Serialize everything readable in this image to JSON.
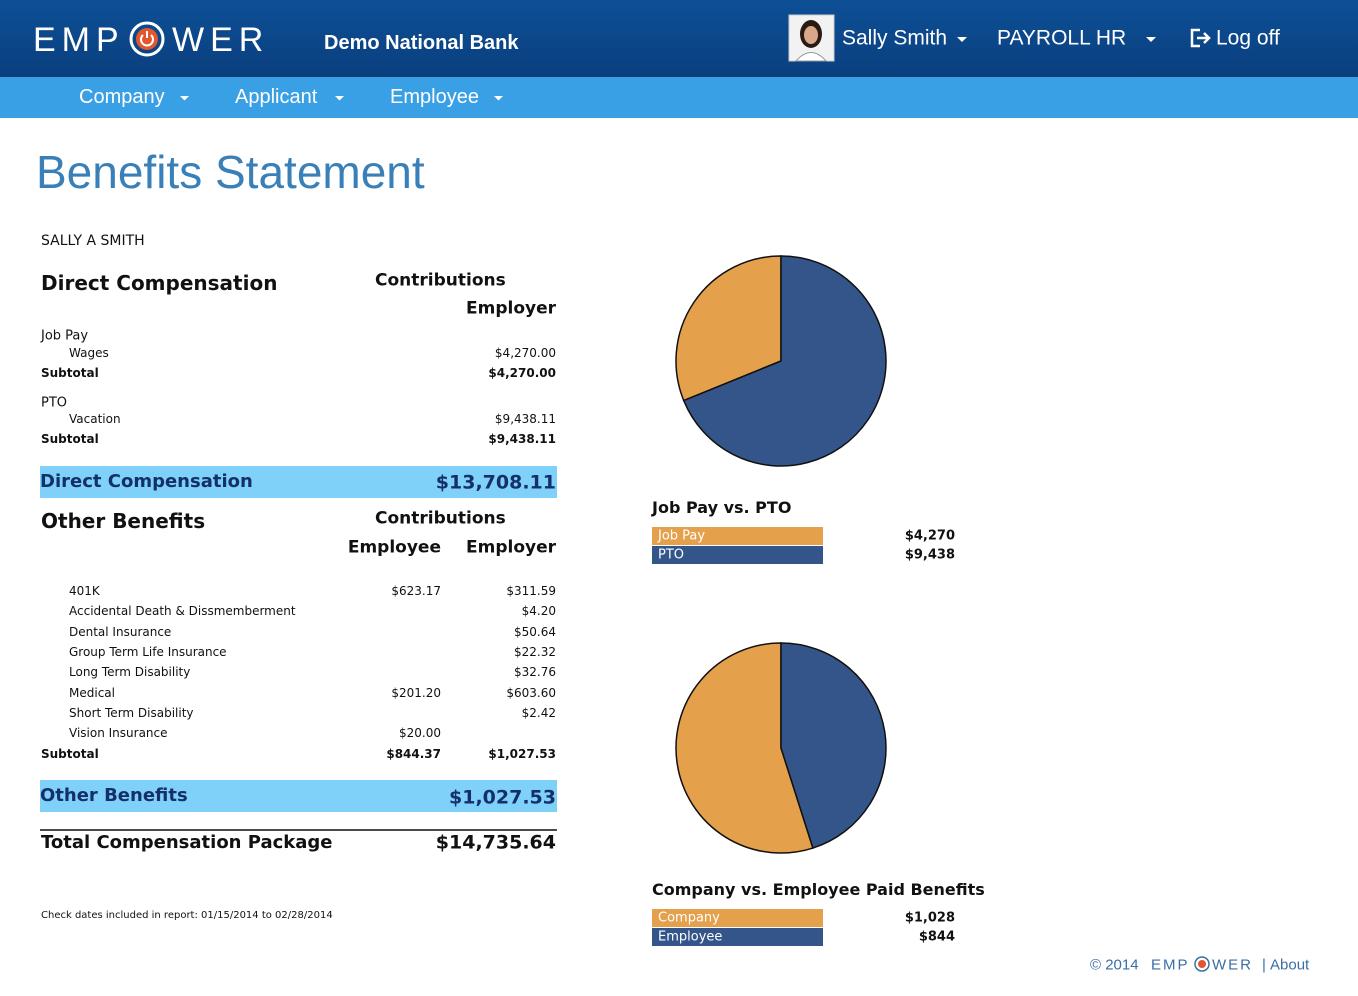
{
  "header": {
    "logo_left": "EMP",
    "logo_right": "WER",
    "bank": "Demo National Bank",
    "user": "Sally Smith",
    "role": "PAYROLL HR",
    "logoff": "Log off"
  },
  "nav": [
    "Company",
    "Applicant",
    "Employee"
  ],
  "page_title": "Benefits Statement",
  "statement": {
    "name": "SALLY A SMITH",
    "direct": {
      "heading": "Direct Compensation",
      "contributions": "Contributions",
      "employer": "Employer",
      "groups": [
        {
          "label": "Job Pay",
          "items": [
            {
              "label": "Wages",
              "employer": "$4,270.00"
            }
          ],
          "subtotal_label": "Subtotal",
          "subtotal": "$4,270.00"
        },
        {
          "label": "PTO",
          "items": [
            {
              "label": "Vacation",
              "employer": "$9,438.11"
            }
          ],
          "subtotal_label": "Subtotal",
          "subtotal": "$9,438.11"
        }
      ],
      "total_label": "Direct Compensation",
      "total": "$13,708.11"
    },
    "other": {
      "heading": "Other Benefits",
      "contributions": "Contributions",
      "employee": "Employee",
      "employer": "Employer",
      "items": [
        {
          "label": "401K",
          "employee": "$623.17",
          "employer": "$311.59"
        },
        {
          "label": "Accidental Death & Dissmemberment",
          "employee": null,
          "employer": "$4.20"
        },
        {
          "label": "Dental Insurance",
          "employee": null,
          "employer": "$50.64"
        },
        {
          "label": "Group Term Life Insurance",
          "employee": null,
          "employer": "$22.32"
        },
        {
          "label": "Long Term Disability",
          "employee": null,
          "employer": "$32.76"
        },
        {
          "label": "Medical",
          "employee": "$201.20",
          "employer": "$603.60"
        },
        {
          "label": "Short Term Disability",
          "employee": null,
          "employer": "$2.42"
        },
        {
          "label": "Vision Insurance",
          "employee": "$20.00",
          "employer": null
        }
      ],
      "subtotal_label": "Subtotal",
      "subtotal_employee": "$844.37",
      "subtotal_employer": "$1,027.53",
      "total_label": "Other Benefits",
      "total": "$1,027.53"
    },
    "package_label": "Total Compensation Package",
    "package_total": "$14,735.64",
    "footnote": "Check dates included in report:  01/15/2014 to 02/28/2014"
  },
  "charts": [
    {
      "type": "pie",
      "title": "Job Pay vs. PTO",
      "categories": [
        "Job Pay",
        "PTO"
      ],
      "values": [
        4270,
        9438
      ],
      "value_labels": [
        "$4,270",
        "$9,438"
      ],
      "colors": [
        "#e5a04c",
        "#34558a"
      ]
    },
    {
      "type": "pie",
      "title": "Company vs. Employee Paid Benefits",
      "categories": [
        "Company",
        "Employee"
      ],
      "values": [
        1028,
        844
      ],
      "value_labels": [
        "$1,028",
        "$844"
      ],
      "colors": [
        "#e5a04c",
        "#34558a"
      ]
    }
  ],
  "footer": {
    "copyright": "© 2014",
    "brand_left": "EMP",
    "brand_right": "WER",
    "separator": "|",
    "link": "About"
  }
}
